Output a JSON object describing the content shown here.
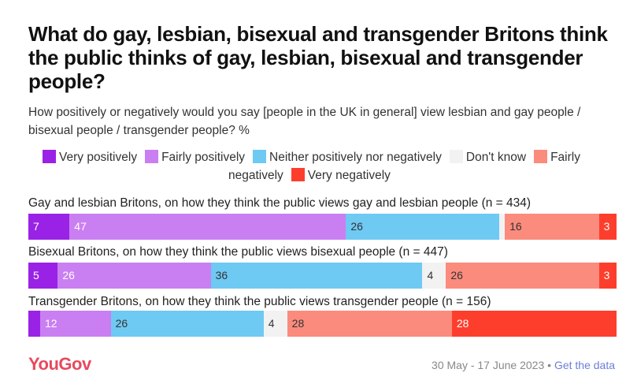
{
  "title": "What do gay, lesbian, bisexual and transgender Britons think the public thinks of gay, lesbian, bisexual and transgender people?",
  "subtitle": "How positively or negatively would you say [people in the UK in general] view lesbian and gay people / bisexual people / transgender people? %",
  "legend": [
    {
      "label": "Very positively",
      "color": "#9a22e6"
    },
    {
      "label": "Fairly positively",
      "color": "#c97ff2"
    },
    {
      "label": "Neither positively nor negatively",
      "color": "#6ec9f3"
    },
    {
      "label": "Don't know",
      "color": "#f2f2f2"
    },
    {
      "label": "Fairly negatively",
      "color": "#fb8b7d"
    },
    {
      "label": "Very negatively",
      "color": "#fe3e2c"
    }
  ],
  "chart_data": {
    "type": "bar",
    "stacked": true,
    "orientation": "horizontal",
    "unit": "%",
    "categories": [
      "Gay and lesbian Britons, on how they think the public views gay and lesbian people (n = 434)",
      "Bisexual Britons, on how they think the public views bisexual people (n = 447)",
      "Transgender Britons, on how they think the public views transgender people (n = 156)"
    ],
    "series": [
      {
        "name": "Very positively",
        "values": [
          7,
          5,
          2
        ]
      },
      {
        "name": "Fairly positively",
        "values": [
          47,
          26,
          12
        ]
      },
      {
        "name": "Neither positively nor negatively",
        "values": [
          26,
          36,
          26
        ]
      },
      {
        "name": "Don't know",
        "values": [
          1,
          4,
          4
        ]
      },
      {
        "name": "Fairly negatively",
        "values": [
          16,
          26,
          28
        ]
      },
      {
        "name": "Very negatively",
        "values": [
          3,
          3,
          28
        ]
      }
    ],
    "labels": [
      [
        "7",
        "47",
        "26",
        "",
        "16",
        "3"
      ],
      [
        "5",
        "26",
        "36",
        "4",
        "26",
        "3"
      ],
      [
        "",
        "12",
        "26",
        "4",
        "28",
        "28"
      ]
    ],
    "label_colors": [
      "#ffffff",
      "#ffffff",
      "#333333",
      "#333333",
      "#333333",
      "#ffffff"
    ]
  },
  "footer": {
    "logo": "YouGov",
    "date": "30 May - 17 June 2023 • ",
    "link": "Get the data"
  }
}
